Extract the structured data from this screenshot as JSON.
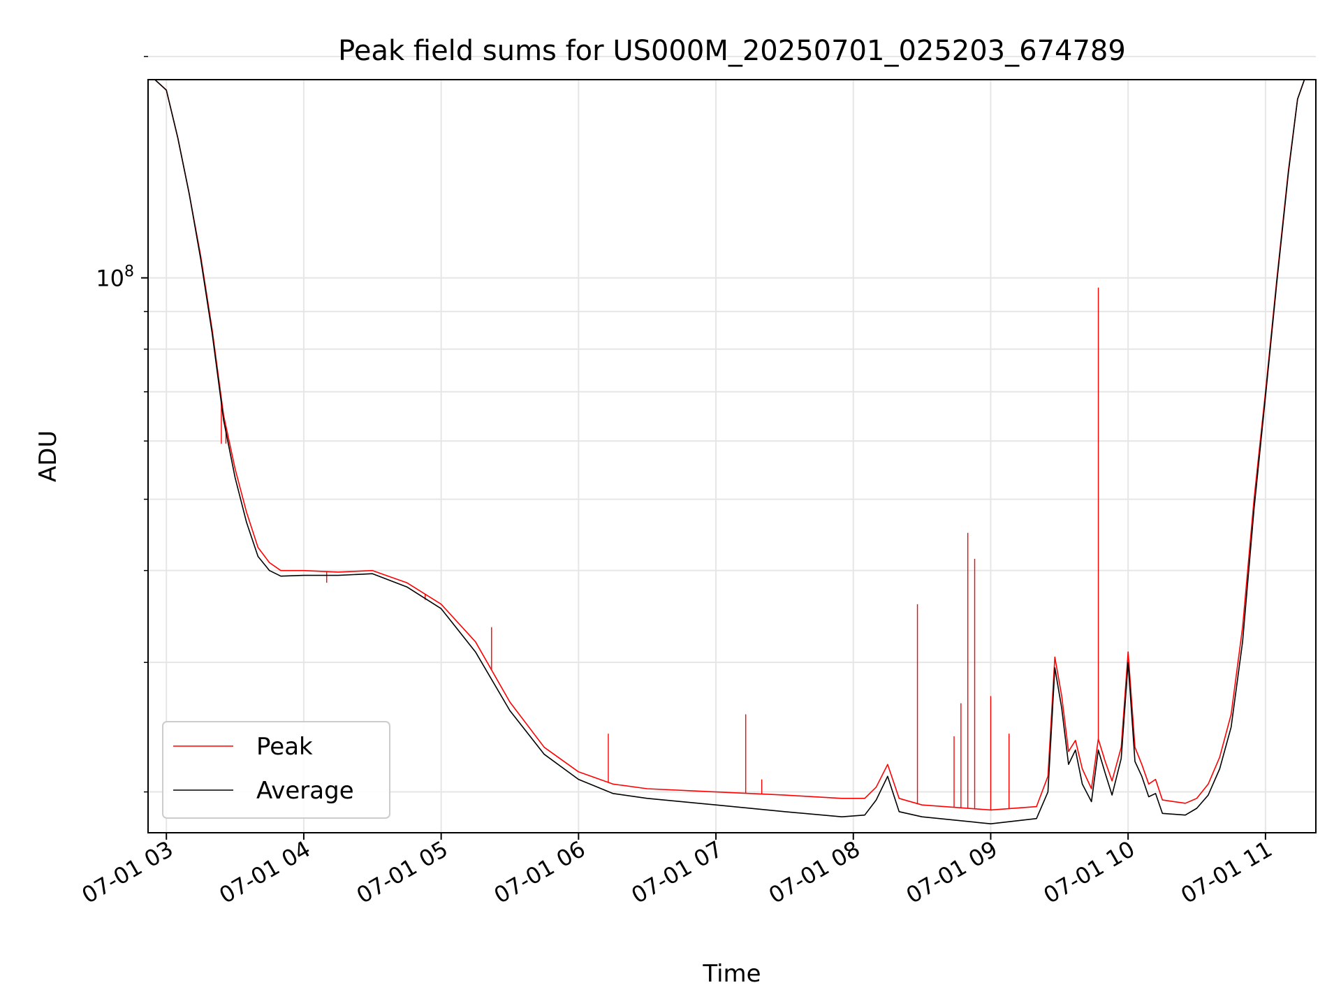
{
  "chart_data": {
    "type": "line",
    "title": "Peak field sums for US000M_20250701_025203_674789",
    "xlabel": "Time",
    "ylabel": "ADU",
    "yscale": "log",
    "grid": true,
    "legend_position": "lower-left",
    "xlim": [
      "07-01 02:52",
      "07-01 11:22"
    ],
    "ylim": [
      17600000,
      186000000
    ],
    "x_ticks": [
      "07-01 03",
      "07-01 04",
      "07-01 05",
      "07-01 06",
      "07-01 07",
      "07-01 08",
      "07-01 09",
      "07-01 10",
      "07-01 11"
    ],
    "x_tick_times": [
      "07-01 03:00",
      "07-01 04:00",
      "07-01 05:00",
      "07-01 06:00",
      "07-01 07:00",
      "07-01 08:00",
      "07-01 09:00",
      "07-01 10:00",
      "07-01 11:00"
    ],
    "y_tick_label": {
      "base": "10",
      "exponent": "8"
    },
    "y_major_tick": 100000000,
    "y_minor_ticks": [
      20000000,
      30000000,
      40000000,
      50000000,
      60000000,
      70000000,
      80000000,
      90000000,
      200000000
    ],
    "series": [
      {
        "name": "Peak",
        "color": "#ff0000",
        "points": [
          [
            "07-01 02:55",
            186000000
          ],
          [
            "07-01 03:00",
            180000000
          ],
          [
            "07-01 03:05",
            155000000
          ],
          [
            "07-01 03:10",
            130000000
          ],
          [
            "07-01 03:15",
            107000000
          ],
          [
            "07-01 03:20",
            85000000
          ],
          [
            "07-01 03:25",
            65000000
          ],
          [
            "07-01 03:30",
            55000000
          ],
          [
            "07-01 03:35",
            48000000
          ],
          [
            "07-01 03:40",
            43000000
          ],
          [
            "07-01 03:45",
            41000000
          ],
          [
            "07-01 03:50",
            40000000
          ],
          [
            "07-01 04:00",
            40000000
          ],
          [
            "07-01 04:15",
            39800000
          ],
          [
            "07-01 04:30",
            40000000
          ],
          [
            "07-01 04:45",
            38500000
          ],
          [
            "07-01 05:00",
            36000000
          ],
          [
            "07-01 05:15",
            32000000
          ],
          [
            "07-01 05:30",
            26500000
          ],
          [
            "07-01 05:45",
            23000000
          ],
          [
            "07-01 06:00",
            21300000
          ],
          [
            "07-01 06:15",
            20500000
          ],
          [
            "07-01 06:30",
            20200000
          ],
          [
            "07-01 07:00",
            20000000
          ],
          [
            "07-01 07:30",
            19800000
          ],
          [
            "07-01 07:55",
            19600000
          ],
          [
            "07-01 08:05",
            19600000
          ],
          [
            "07-01 08:10",
            20300000
          ],
          [
            "07-01 08:15",
            21800000
          ],
          [
            "07-01 08:20",
            19600000
          ],
          [
            "07-01 08:30",
            19200000
          ],
          [
            "07-01 09:00",
            18900000
          ],
          [
            "07-01 09:20",
            19100000
          ],
          [
            "07-01 09:25",
            21000000
          ],
          [
            "07-01 09:28",
            30500000
          ],
          [
            "07-01 09:31",
            27000000
          ],
          [
            "07-01 09:34",
            22700000
          ],
          [
            "07-01 09:37",
            23500000
          ],
          [
            "07-01 09:40",
            21500000
          ],
          [
            "07-01 09:44",
            20200000
          ],
          [
            "07-01 09:47",
            23600000
          ],
          [
            "07-01 09:50",
            22000000
          ],
          [
            "07-01 09:53",
            20700000
          ],
          [
            "07-01 09:57",
            23000000
          ],
          [
            "07-01 10:00",
            31000000
          ],
          [
            "07-01 10:03",
            23000000
          ],
          [
            "07-01 10:06",
            21800000
          ],
          [
            "07-01 10:09",
            20500000
          ],
          [
            "07-01 10:12",
            20800000
          ],
          [
            "07-01 10:15",
            19500000
          ],
          [
            "07-01 10:25",
            19300000
          ],
          [
            "07-01 10:30",
            19600000
          ],
          [
            "07-01 10:35",
            20500000
          ],
          [
            "07-01 10:40",
            22300000
          ],
          [
            "07-01 10:45",
            25500000
          ],
          [
            "07-01 10:50",
            33500000
          ],
          [
            "07-01 10:55",
            50000000
          ],
          [
            "07-01 11:00",
            70000000
          ],
          [
            "07-01 11:05",
            100000000
          ],
          [
            "07-01 11:10",
            140000000
          ],
          [
            "07-01 11:14",
            175000000
          ],
          [
            "07-01 11:17",
            186000000
          ]
        ],
        "spikes": [
          [
            "07-01 03:24",
            59500000
          ],
          [
            "07-01 03:26",
            59500000
          ],
          [
            "07-01 04:10",
            38500000
          ],
          [
            "07-01 04:53",
            36500000
          ],
          [
            "07-01 05:22",
            33500000
          ],
          [
            "07-01 06:13",
            24000000
          ],
          [
            "07-01 07:13",
            25500000
          ],
          [
            "07-01 07:20",
            20800000
          ],
          [
            "07-01 08:28",
            36000000
          ],
          [
            "07-01 08:44",
            23800000
          ],
          [
            "07-01 08:47",
            26400000
          ],
          [
            "07-01 08:50",
            45000000
          ],
          [
            "07-01 08:53",
            41500000
          ],
          [
            "07-01 09:00",
            27000000
          ],
          [
            "07-01 09:08",
            24000000
          ],
          [
            "07-01 09:47",
            97000000
          ]
        ]
      },
      {
        "name": "Average",
        "color": "#000000",
        "points": [
          [
            "07-01 02:55",
            186000000
          ],
          [
            "07-01 03:00",
            180000000
          ],
          [
            "07-01 03:05",
            155000000
          ],
          [
            "07-01 03:10",
            130000000
          ],
          [
            "07-01 03:15",
            106000000
          ],
          [
            "07-01 03:20",
            84000000
          ],
          [
            "07-01 03:25",
            64000000
          ],
          [
            "07-01 03:30",
            53500000
          ],
          [
            "07-01 03:35",
            46500000
          ],
          [
            "07-01 03:40",
            41800000
          ],
          [
            "07-01 03:45",
            40000000
          ],
          [
            "07-01 03:50",
            39300000
          ],
          [
            "07-01 04:00",
            39400000
          ],
          [
            "07-01 04:15",
            39400000
          ],
          [
            "07-01 04:30",
            39600000
          ],
          [
            "07-01 04:45",
            38000000
          ],
          [
            "07-01 05:00",
            35500000
          ],
          [
            "07-01 05:15",
            31000000
          ],
          [
            "07-01 05:30",
            25800000
          ],
          [
            "07-01 05:45",
            22500000
          ],
          [
            "07-01 06:00",
            20800000
          ],
          [
            "07-01 06:15",
            19900000
          ],
          [
            "07-01 06:30",
            19600000
          ],
          [
            "07-01 07:00",
            19200000
          ],
          [
            "07-01 07:30",
            18800000
          ],
          [
            "07-01 07:55",
            18500000
          ],
          [
            "07-01 08:05",
            18600000
          ],
          [
            "07-01 08:10",
            19500000
          ],
          [
            "07-01 08:15",
            21000000
          ],
          [
            "07-01 08:20",
            18800000
          ],
          [
            "07-01 08:30",
            18500000
          ],
          [
            "07-01 09:00",
            18100000
          ],
          [
            "07-01 09:20",
            18400000
          ],
          [
            "07-01 09:25",
            20000000
          ],
          [
            "07-01 09:28",
            29500000
          ],
          [
            "07-01 09:31",
            26000000
          ],
          [
            "07-01 09:34",
            21800000
          ],
          [
            "07-01 09:37",
            22800000
          ],
          [
            "07-01 09:40",
            20500000
          ],
          [
            "07-01 09:44",
            19400000
          ],
          [
            "07-01 09:47",
            22800000
          ],
          [
            "07-01 09:50",
            21200000
          ],
          [
            "07-01 09:53",
            19800000
          ],
          [
            "07-01 09:57",
            22200000
          ],
          [
            "07-01 10:00",
            30000000
          ],
          [
            "07-01 10:03",
            22000000
          ],
          [
            "07-01 10:06",
            21000000
          ],
          [
            "07-01 10:09",
            19700000
          ],
          [
            "07-01 10:12",
            19900000
          ],
          [
            "07-01 10:15",
            18700000
          ],
          [
            "07-01 10:25",
            18600000
          ],
          [
            "07-01 10:30",
            19000000
          ],
          [
            "07-01 10:35",
            19800000
          ],
          [
            "07-01 10:40",
            21500000
          ],
          [
            "07-01 10:45",
            24500000
          ],
          [
            "07-01 10:50",
            32000000
          ],
          [
            "07-01 10:55",
            48500000
          ],
          [
            "07-01 11:00",
            69000000
          ],
          [
            "07-01 11:05",
            99000000
          ],
          [
            "07-01 11:10",
            139000000
          ],
          [
            "07-01 11:14",
            175000000
          ],
          [
            "07-01 11:17",
            186000000
          ]
        ]
      }
    ]
  }
}
